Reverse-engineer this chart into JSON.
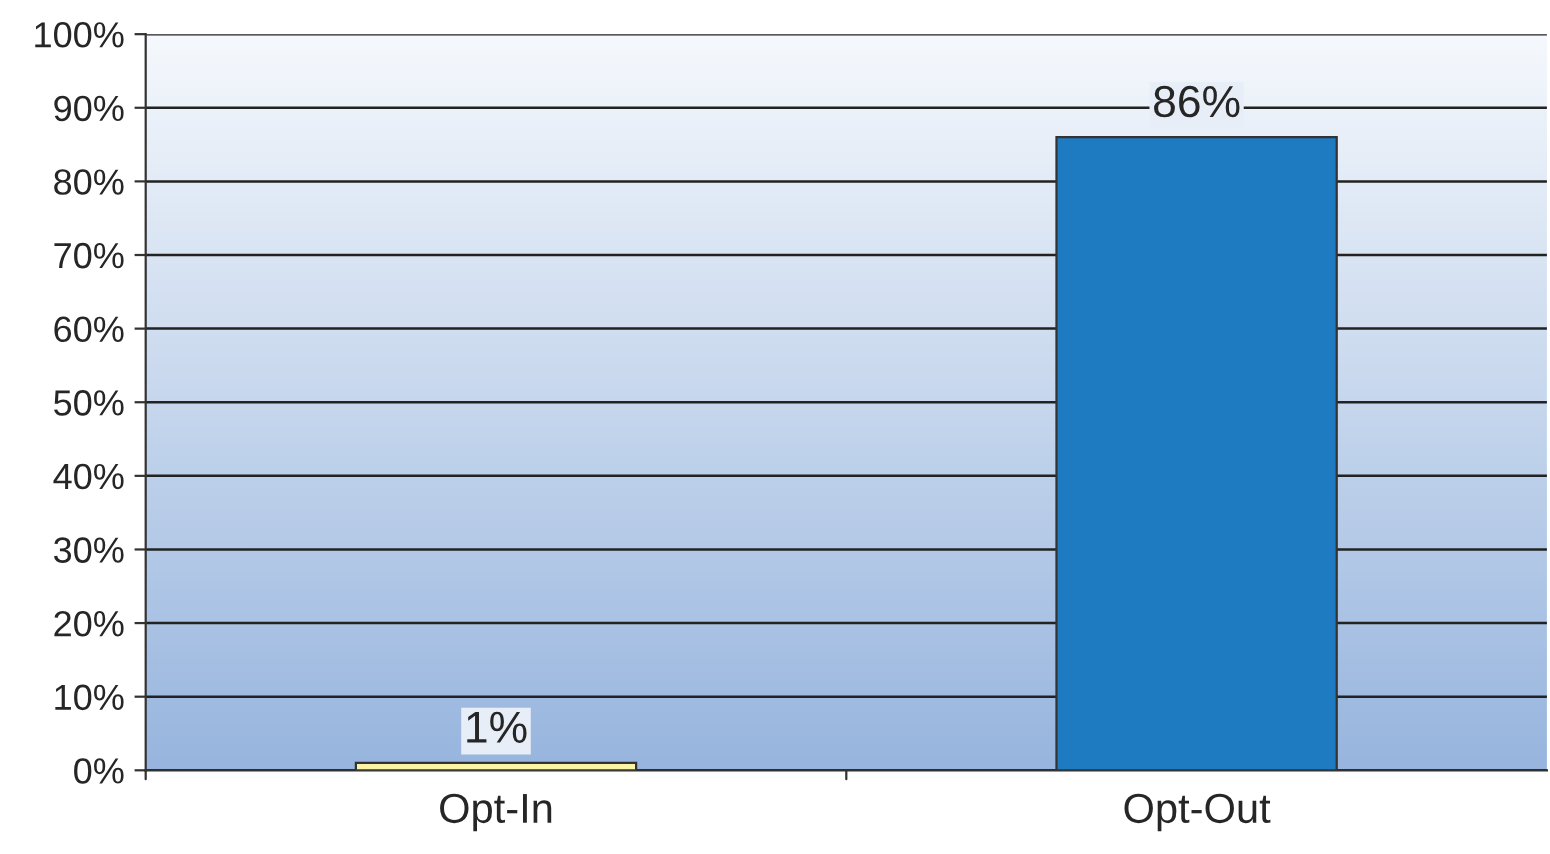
{
  "chart_data": {
    "type": "bar",
    "categories": [
      "Opt-In",
      "Opt-Out"
    ],
    "values": [
      1,
      86
    ],
    "colors": [
      "#fdf5a6",
      "#1e7bc1"
    ],
    "value_labels": [
      "1%",
      "86%"
    ],
    "ylim": [
      0,
      100
    ],
    "yticks": [
      {
        "value": 0,
        "label": "0%"
      },
      {
        "value": 10,
        "label": "10%"
      },
      {
        "value": 20,
        "label": "20%"
      },
      {
        "value": 30,
        "label": "30%"
      },
      {
        "value": 40,
        "label": "40%"
      },
      {
        "value": 50,
        "label": "50%"
      },
      {
        "value": 60,
        "label": "60%"
      },
      {
        "value": 70,
        "label": "70%"
      },
      {
        "value": 80,
        "label": "80%"
      },
      {
        "value": 90,
        "label": "90%"
      },
      {
        "value": 100,
        "label": "100%"
      }
    ],
    "grid": "y"
  }
}
